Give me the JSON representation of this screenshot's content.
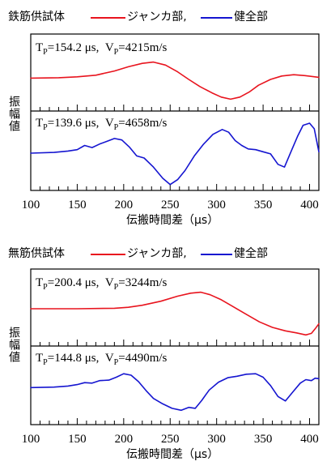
{
  "chart_data": [
    {
      "type": "line",
      "xlabel": "伝搬時間差（μs）",
      "ylabel": "振幅値",
      "xlim": [
        100,
        410
      ],
      "xticks": [
        100,
        150,
        200,
        250,
        300,
        350,
        400
      ],
      "legend": {
        "title": "鉄筋供試体",
        "red_label": "ジャンカ部,",
        "blue_label": "健全部",
        "placement": "top"
      },
      "panels": [
        {
          "name": "upper",
          "color": "#e8141e",
          "annotation": {
            "t_label": "T",
            "t_sub": "P",
            "t_val": "=154.2 μs,",
            "v_label": "V",
            "v_sub": "P",
            "v_val": "=4215m/s"
          },
          "series": [
            {
              "x": 100,
              "y": 0.55
            },
            {
              "x": 130,
              "y": 0.56
            },
            {
              "x": 150,
              "y": 0.58
            },
            {
              "x": 170,
              "y": 0.62
            },
            {
              "x": 190,
              "y": 0.72
            },
            {
              "x": 205,
              "y": 0.82
            },
            {
              "x": 220,
              "y": 0.9
            },
            {
              "x": 232,
              "y": 0.93
            },
            {
              "x": 245,
              "y": 0.86
            },
            {
              "x": 258,
              "y": 0.7
            },
            {
              "x": 270,
              "y": 0.52
            },
            {
              "x": 282,
              "y": 0.35
            },
            {
              "x": 295,
              "y": 0.2
            },
            {
              "x": 305,
              "y": 0.1
            },
            {
              "x": 315,
              "y": 0.05
            },
            {
              "x": 325,
              "y": 0.1
            },
            {
              "x": 335,
              "y": 0.22
            },
            {
              "x": 345,
              "y": 0.38
            },
            {
              "x": 358,
              "y": 0.52
            },
            {
              "x": 370,
              "y": 0.6
            },
            {
              "x": 383,
              "y": 0.63
            },
            {
              "x": 395,
              "y": 0.61
            },
            {
              "x": 410,
              "y": 0.57
            }
          ]
        },
        {
          "name": "lower",
          "color": "#1515d0",
          "annotation": {
            "t_label": "T",
            "t_sub": "P",
            "t_val": "=139.6 μs,",
            "v_label": "V",
            "v_sub": "P",
            "v_val": "=4658m/s"
          },
          "series": [
            {
              "x": 100,
              "y": 0.5
            },
            {
              "x": 125,
              "y": 0.51
            },
            {
              "x": 140,
              "y": 0.53
            },
            {
              "x": 150,
              "y": 0.55
            },
            {
              "x": 158,
              "y": 0.61
            },
            {
              "x": 166,
              "y": 0.58
            },
            {
              "x": 174,
              "y": 0.63
            },
            {
              "x": 182,
              "y": 0.67
            },
            {
              "x": 190,
              "y": 0.71
            },
            {
              "x": 198,
              "y": 0.69
            },
            {
              "x": 206,
              "y": 0.59
            },
            {
              "x": 214,
              "y": 0.46
            },
            {
              "x": 222,
              "y": 0.43
            },
            {
              "x": 232,
              "y": 0.3
            },
            {
              "x": 242,
              "y": 0.14
            },
            {
              "x": 250,
              "y": 0.05
            },
            {
              "x": 258,
              "y": 0.12
            },
            {
              "x": 266,
              "y": 0.25
            },
            {
              "x": 276,
              "y": 0.46
            },
            {
              "x": 286,
              "y": 0.63
            },
            {
              "x": 296,
              "y": 0.77
            },
            {
              "x": 306,
              "y": 0.84
            },
            {
              "x": 313,
              "y": 0.8
            },
            {
              "x": 320,
              "y": 0.68
            },
            {
              "x": 327,
              "y": 0.61
            },
            {
              "x": 334,
              "y": 0.56
            },
            {
              "x": 342,
              "y": 0.55
            },
            {
              "x": 350,
              "y": 0.52
            },
            {
              "x": 358,
              "y": 0.49
            },
            {
              "x": 366,
              "y": 0.34
            },
            {
              "x": 373,
              "y": 0.3
            },
            {
              "x": 380,
              "y": 0.52
            },
            {
              "x": 387,
              "y": 0.74
            },
            {
              "x": 393,
              "y": 0.9
            },
            {
              "x": 400,
              "y": 0.93
            },
            {
              "x": 405,
              "y": 0.85
            },
            {
              "x": 410,
              "y": 0.52
            }
          ]
        }
      ]
    },
    {
      "type": "line",
      "xlabel": "伝搬時間差（μs）",
      "ylabel": "振幅値",
      "xlim": [
        100,
        410
      ],
      "xticks": [
        100,
        150,
        200,
        250,
        300,
        350,
        400
      ],
      "legend": {
        "title": "無筋供試体",
        "red_label": "ジャンカ部,",
        "blue_label": "健全部",
        "placement": "top"
      },
      "panels": [
        {
          "name": "upper",
          "color": "#e8141e",
          "annotation": {
            "t_label": "T",
            "t_sub": "P",
            "t_val": "=200.4 μs,",
            "v_label": "V",
            "v_sub": "P",
            "v_val": "=3244m/s"
          },
          "series": [
            {
              "x": 100,
              "y": 0.58
            },
            {
              "x": 150,
              "y": 0.58
            },
            {
              "x": 190,
              "y": 0.59
            },
            {
              "x": 205,
              "y": 0.61
            },
            {
              "x": 220,
              "y": 0.65
            },
            {
              "x": 240,
              "y": 0.73
            },
            {
              "x": 258,
              "y": 0.83
            },
            {
              "x": 272,
              "y": 0.89
            },
            {
              "x": 283,
              "y": 0.91
            },
            {
              "x": 293,
              "y": 0.86
            },
            {
              "x": 305,
              "y": 0.76
            },
            {
              "x": 318,
              "y": 0.62
            },
            {
              "x": 332,
              "y": 0.47
            },
            {
              "x": 346,
              "y": 0.32
            },
            {
              "x": 360,
              "y": 0.21
            },
            {
              "x": 374,
              "y": 0.14
            },
            {
              "x": 386,
              "y": 0.1
            },
            {
              "x": 396,
              "y": 0.06
            },
            {
              "x": 402,
              "y": 0.09
            },
            {
              "x": 406,
              "y": 0.18
            },
            {
              "x": 410,
              "y": 0.28
            }
          ]
        },
        {
          "name": "lower",
          "color": "#1515d0",
          "annotation": {
            "t_label": "T",
            "t_sub": "P",
            "t_val": "=144.8 μs,",
            "v_label": "V",
            "v_sub": "P",
            "v_val": "=4490m/s"
          },
          "series": [
            {
              "x": 100,
              "y": 0.52
            },
            {
              "x": 125,
              "y": 0.53
            },
            {
              "x": 140,
              "y": 0.55
            },
            {
              "x": 150,
              "y": 0.58
            },
            {
              "x": 158,
              "y": 0.62
            },
            {
              "x": 166,
              "y": 0.61
            },
            {
              "x": 174,
              "y": 0.66
            },
            {
              "x": 184,
              "y": 0.67
            },
            {
              "x": 192,
              "y": 0.73
            },
            {
              "x": 200,
              "y": 0.8
            },
            {
              "x": 208,
              "y": 0.77
            },
            {
              "x": 216,
              "y": 0.64
            },
            {
              "x": 224,
              "y": 0.46
            },
            {
              "x": 232,
              "y": 0.3
            },
            {
              "x": 242,
              "y": 0.19
            },
            {
              "x": 252,
              "y": 0.1
            },
            {
              "x": 262,
              "y": 0.06
            },
            {
              "x": 270,
              "y": 0.12
            },
            {
              "x": 277,
              "y": 0.1
            },
            {
              "x": 284,
              "y": 0.26
            },
            {
              "x": 292,
              "y": 0.47
            },
            {
              "x": 302,
              "y": 0.63
            },
            {
              "x": 312,
              "y": 0.72
            },
            {
              "x": 322,
              "y": 0.75
            },
            {
              "x": 332,
              "y": 0.79
            },
            {
              "x": 342,
              "y": 0.8
            },
            {
              "x": 350,
              "y": 0.73
            },
            {
              "x": 358,
              "y": 0.56
            },
            {
              "x": 366,
              "y": 0.34
            },
            {
              "x": 374,
              "y": 0.25
            },
            {
              "x": 382,
              "y": 0.43
            },
            {
              "x": 390,
              "y": 0.61
            },
            {
              "x": 396,
              "y": 0.68
            },
            {
              "x": 402,
              "y": 0.66
            },
            {
              "x": 406,
              "y": 0.71
            },
            {
              "x": 410,
              "y": 0.7
            }
          ]
        }
      ]
    }
  ]
}
